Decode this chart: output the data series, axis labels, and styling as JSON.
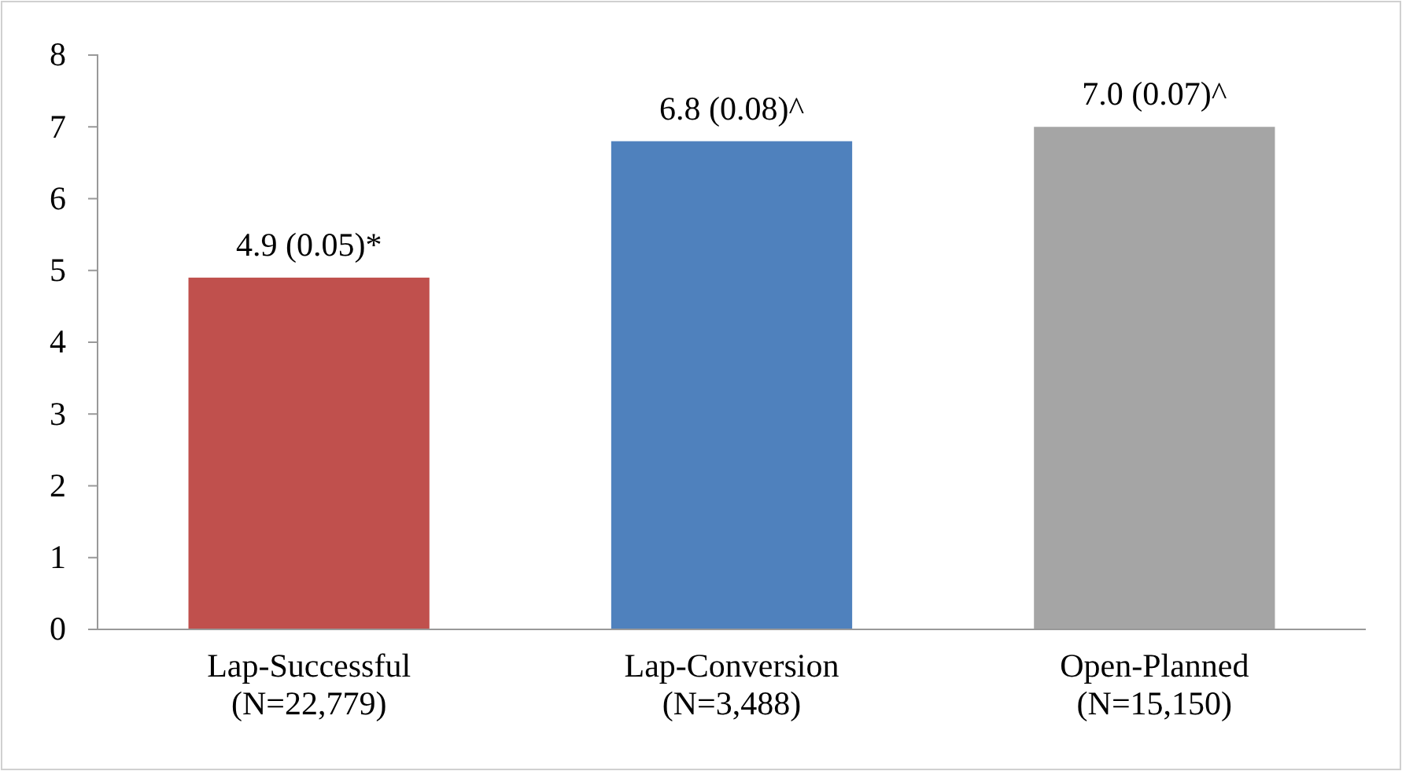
{
  "chart_data": {
    "type": "bar",
    "categories": [
      "Lap-Successful\n(N=22,779)",
      "Lap-Conversion\n(N=3,488)",
      "Open-Planned\n(N=15,150)"
    ],
    "values": [
      4.9,
      6.8,
      7.0
    ],
    "colors": [
      "#c0504d",
      "#4f81bd",
      "#a5a5a5"
    ],
    "value_labels": [
      "4.9 (0.05)*",
      "6.8 (0.08)^",
      "7.0 (0.07)^"
    ],
    "ylim": [
      0,
      8
    ],
    "yticks": [
      0,
      1,
      2,
      3,
      4,
      5,
      6,
      7,
      8
    ],
    "grid": false
  }
}
